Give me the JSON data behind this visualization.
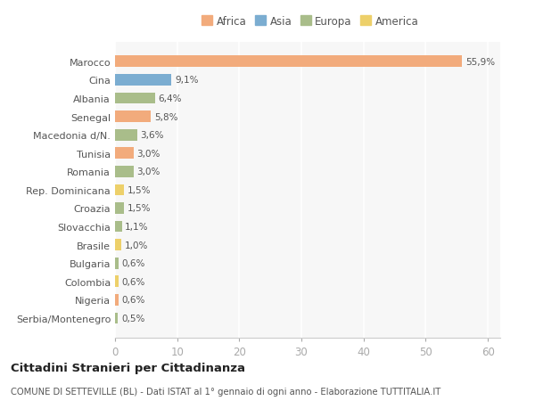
{
  "countries": [
    "Marocco",
    "Cina",
    "Albania",
    "Senegal",
    "Macedonia d/N.",
    "Tunisia",
    "Romania",
    "Rep. Dominicana",
    "Croazia",
    "Slovacchia",
    "Brasile",
    "Bulgaria",
    "Colombia",
    "Nigeria",
    "Serbia/Montenegro"
  ],
  "values": [
    55.9,
    9.1,
    6.4,
    5.8,
    3.6,
    3.0,
    3.0,
    1.5,
    1.5,
    1.1,
    1.0,
    0.6,
    0.6,
    0.6,
    0.5
  ],
  "labels": [
    "55,9%",
    "9,1%",
    "6,4%",
    "5,8%",
    "3,6%",
    "3,0%",
    "3,0%",
    "1,5%",
    "1,5%",
    "1,1%",
    "1,0%",
    "0,6%",
    "0,6%",
    "0,6%",
    "0,5%"
  ],
  "continents": [
    "Africa",
    "Asia",
    "Europa",
    "Africa",
    "Europa",
    "Africa",
    "Europa",
    "America",
    "Europa",
    "Europa",
    "America",
    "Europa",
    "America",
    "Africa",
    "Europa"
  ],
  "colors": {
    "Africa": "#F2AB7C",
    "Asia": "#7BADD1",
    "Europa": "#A9BD8A",
    "America": "#EDD06A"
  },
  "title": "Cittadini Stranieri per Cittadinanza",
  "subtitle": "COMUNE DI SETTEVILLE (BL) - Dati ISTAT al 1° gennaio di ogni anno - Elaborazione TUTTITALIA.IT",
  "xlim": [
    0,
    62
  ],
  "background_color": "#ffffff",
  "plot_bg_color": "#f7f7f7",
  "legend_order": [
    "Africa",
    "Asia",
    "Europa",
    "America"
  ]
}
